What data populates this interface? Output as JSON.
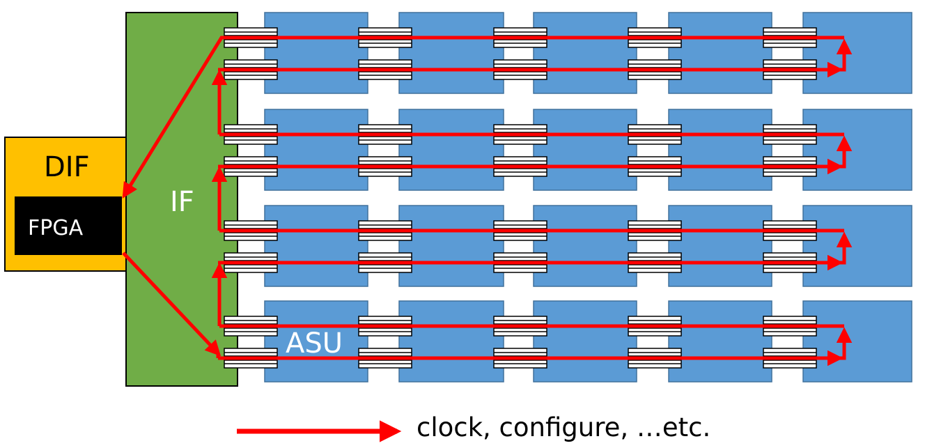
{
  "labels": {
    "dif": "DIF",
    "fpga": "FPGA",
    "interface": "IF",
    "asu": "ASU"
  },
  "legend": {
    "text": "clock, configure, …etc."
  },
  "grid": {
    "rows": 4,
    "columns": 5,
    "signal_lines_per_row": 2
  },
  "colors": {
    "dif": "#ffc000",
    "fpga": "#000000",
    "interface": "#70ad47",
    "asu": "#5b9bd5",
    "signal": "#ff0000"
  }
}
